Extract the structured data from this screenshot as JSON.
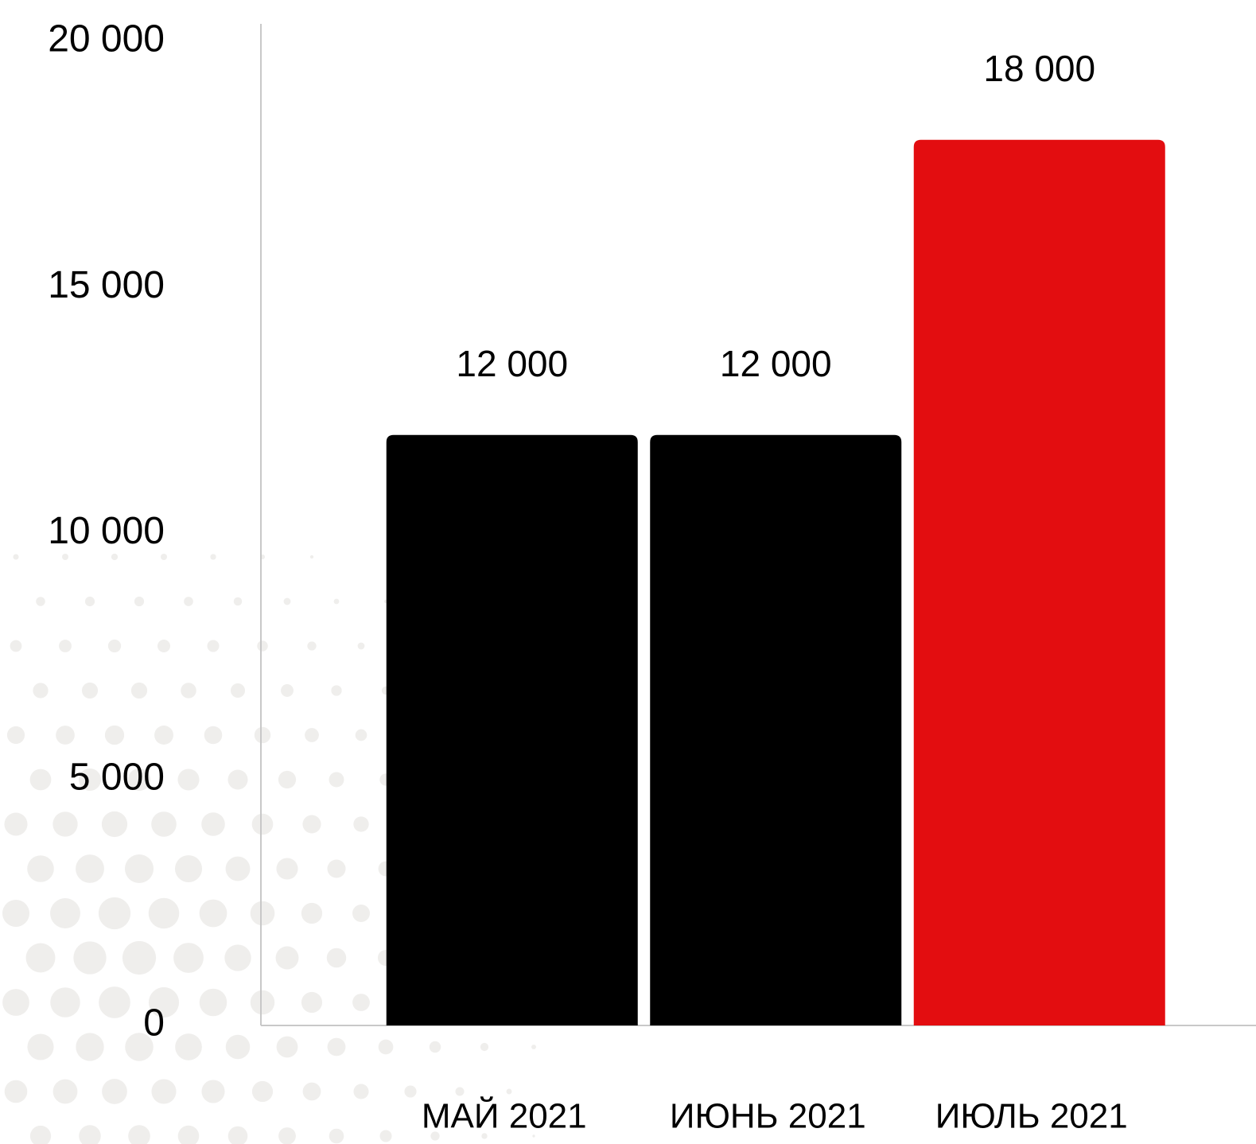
{
  "chart_data": {
    "type": "bar",
    "categories": [
      "МАЙ 2021",
      "ИЮНЬ 2021",
      "ИЮЛЬ 2021"
    ],
    "values": [
      12000,
      12000,
      18000
    ],
    "value_labels": [
      "12 000",
      "12 000",
      "18 000"
    ],
    "colors": [
      "#000000",
      "#000000",
      "#e30d10"
    ],
    "ylim": [
      0,
      20000
    ],
    "yticks": [
      0,
      {
        "value": 5000,
        "label": "5 000"
      },
      {
        "value": 10000,
        "label": "10 000"
      },
      {
        "value": 15000,
        "label": "15 000"
      },
      {
        "value": 20000,
        "label": "20 000"
      }
    ],
    "grid": false
  }
}
